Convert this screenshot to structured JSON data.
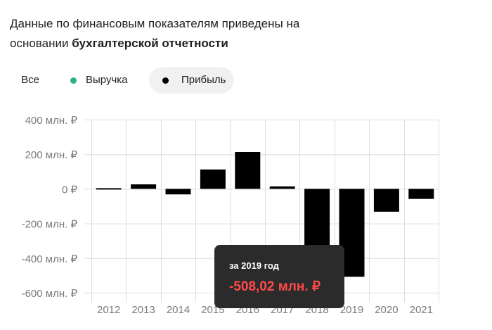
{
  "intro": {
    "text_regular": "Данные по финансовым показателям приведены на основании",
    "text_bold": "бухгалтерской отчетности"
  },
  "filters": {
    "all_label": "Все",
    "revenue_label": "Выручка",
    "profit_label": "Прибыль",
    "active": "profit",
    "revenue_color": "#2bb37a",
    "profit_color": "#000000"
  },
  "colors": {
    "bar": "#000000",
    "grid": "#dedede",
    "axis_text": "#7a7a7a",
    "tooltip_bg": "#2b2b2b",
    "tooltip_value": "#ff4a4a"
  },
  "tooltip": {
    "label": "за 2019 год",
    "value": "-508,02 млн. ₽"
  },
  "chart_data": {
    "type": "bar",
    "title": "",
    "xlabel": "",
    "ylabel": "",
    "categories": [
      "2012",
      "2013",
      "2014",
      "2015",
      "2016",
      "2017",
      "2018",
      "2019",
      "2020",
      "2021"
    ],
    "series": [
      {
        "values": [
          4,
          26,
          -32,
          112,
          213,
          14,
          -395,
          -508.02,
          -132,
          -58
        ]
      }
    ],
    "ylim": [
      -600,
      400
    ],
    "yticks": [
      400,
      200,
      0,
      -200,
      -400,
      -600
    ],
    "ytick_labels": [
      "400 млн. ₽",
      "200 млн. ₽",
      "0 ₽",
      "-200 млн. ₽",
      "-400 млн. ₽",
      "-600 млн. ₽"
    ],
    "grid": true,
    "legend": "none"
  }
}
